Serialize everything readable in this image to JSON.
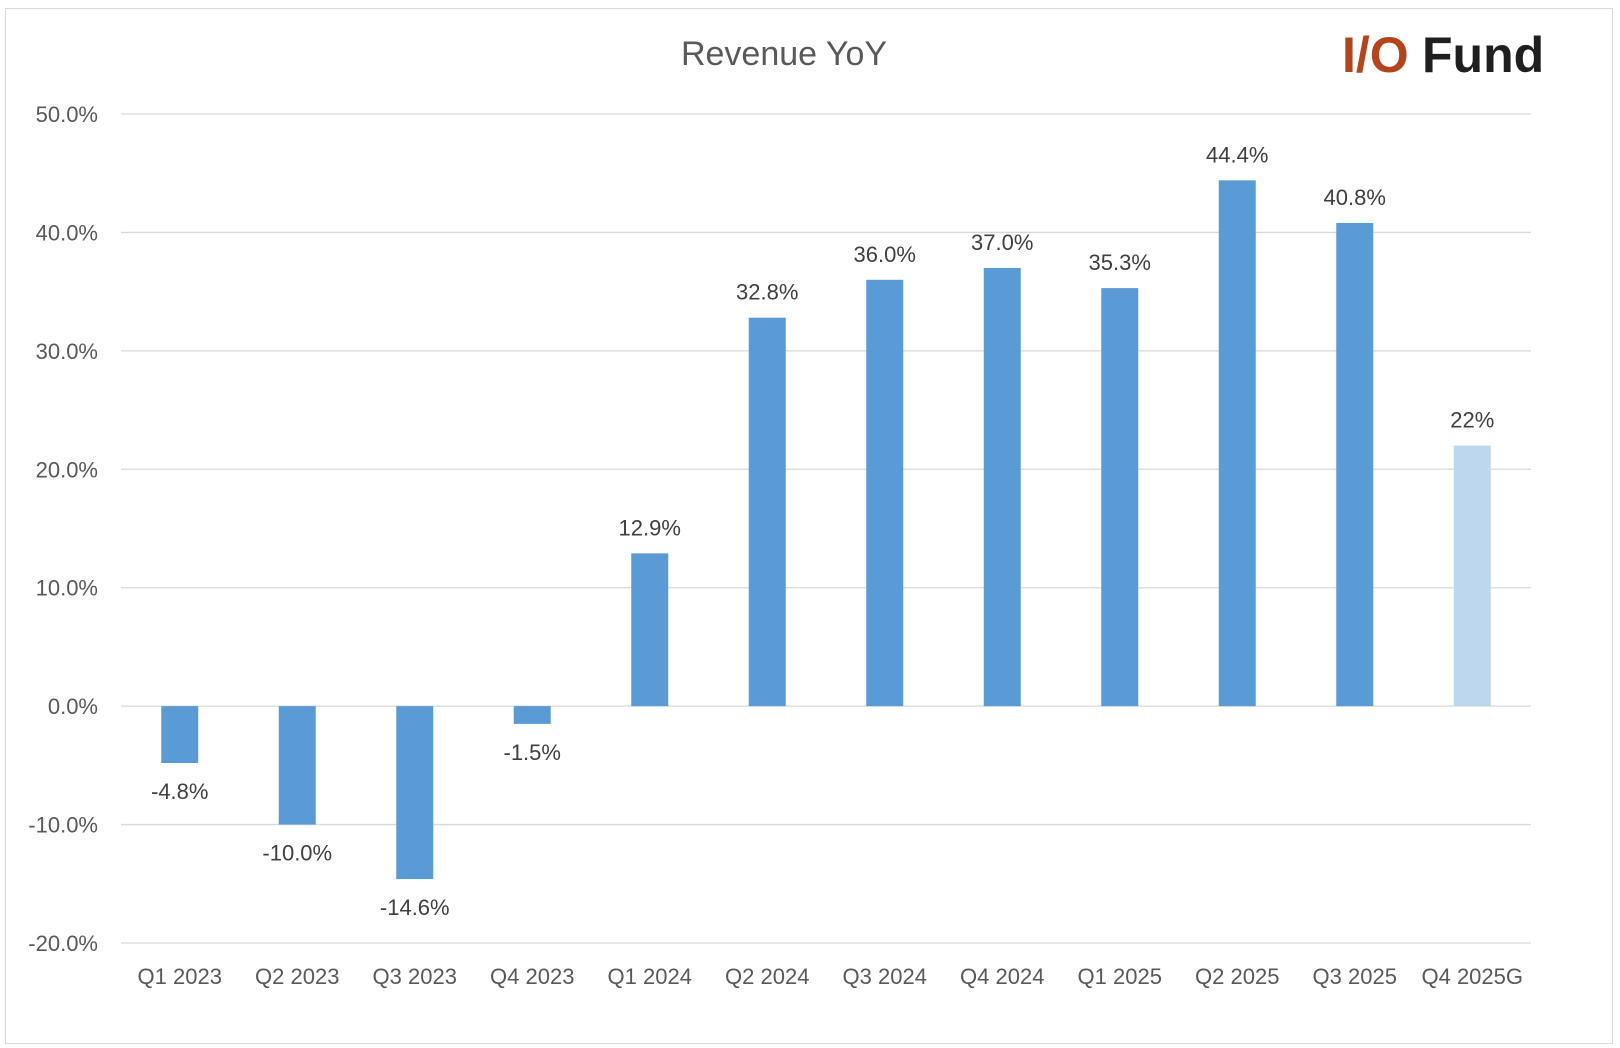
{
  "logo": {
    "text_io": "I/O",
    "text_fund": "Fund",
    "color_io": "#b5441b",
    "color_fund": "#1f1f1f"
  },
  "chart_data": {
    "type": "bar",
    "title": "Revenue YoY",
    "xlabel": "",
    "ylabel": "",
    "ylim": [
      -20,
      50
    ],
    "yticks": [
      50,
      40,
      30,
      20,
      10,
      0,
      -10,
      -20
    ],
    "ytick_labels": [
      "50.0%",
      "40.0%",
      "30.0%",
      "20.0%",
      "10.0%",
      "0.0%",
      "-10.0%",
      "-20.0%"
    ],
    "categories": [
      "Q1 2023",
      "Q2 2023",
      "Q3 2023",
      "Q4 2023",
      "Q1 2024",
      "Q2 2024",
      "Q3 2024",
      "Q4 2024",
      "Q1 2025",
      "Q2 2025",
      "Q3 2025",
      "Q4 2025G"
    ],
    "values": [
      -4.8,
      -10.0,
      -14.6,
      -1.5,
      12.9,
      32.8,
      36.0,
      37.0,
      35.3,
      44.4,
      40.8,
      22
    ],
    "data_labels": [
      "-4.8%",
      "-10.0%",
      "-14.6%",
      "-1.5%",
      "12.9%",
      "32.8%",
      "36.0%",
      "37.0%",
      "35.3%",
      "44.4%",
      "40.8%",
      "22%"
    ],
    "guidance_flags": [
      false,
      false,
      false,
      false,
      false,
      false,
      false,
      false,
      false,
      false,
      false,
      true
    ],
    "grid": true,
    "legend": "none",
    "colors": {
      "bar": "#5b9bd5",
      "guidance_bar": "#bdd7ee",
      "gridline": "#d9d9d9"
    }
  }
}
